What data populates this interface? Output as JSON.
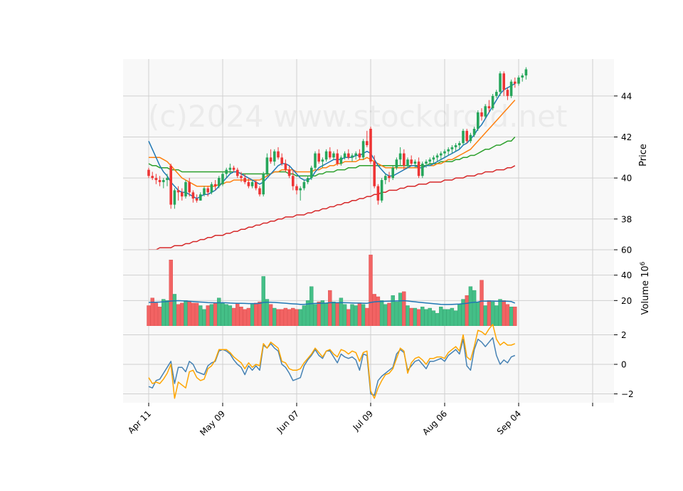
{
  "chart_data": {
    "type": "candlestick",
    "watermark": "(c)2024 www.stockdroid.net",
    "price_panel": {
      "ylabel": "Price",
      "yticks": [
        38,
        40,
        42,
        44
      ],
      "ylim": [
        36.5,
        45.8
      ]
    },
    "volume_panel": {
      "ylabel": "Volume  10",
      "ylabel_exp": "6",
      "yticks": [
        20,
        40,
        60
      ],
      "ylim": [
        0,
        60
      ]
    },
    "indicator_panel": {
      "yticks": [
        -2,
        0,
        2
      ],
      "ylim": [
        -2.6,
        2.6
      ]
    },
    "x_tick_labels": [
      "Apr 11",
      "May 09",
      "Jun 07",
      "Jul 09",
      "Aug 06",
      "Sep 04",
      ""
    ],
    "x_tick_index": [
      0,
      20,
      40,
      60,
      80,
      100,
      120
    ],
    "grid": true,
    "colors": {
      "up": "#26a65b",
      "down": "#ee3535",
      "up_volume": "#44bf87",
      "down_volume": "#f26363",
      "ma_short": "#1f77b4",
      "ma_mid": "#ff7f0e",
      "ma_long": "#2ca02c",
      "ma_longest": "#d62728",
      "volume_ma": "#1f77b4",
      "indicator_1": "#4682b4",
      "indicator_2": "#ffa500",
      "panel_bg": "#f8f8f8",
      "grid": "#d0d0d0"
    },
    "candles": [
      [
        40.4,
        40.5,
        40.0,
        40.1
      ],
      [
        40.1,
        40.3,
        39.9,
        40.0
      ],
      [
        40.0,
        40.2,
        39.7,
        39.9
      ],
      [
        39.9,
        40.1,
        39.6,
        39.8
      ],
      [
        39.8,
        40.0,
        39.5,
        39.9
      ],
      [
        39.9,
        40.2,
        39.6,
        40.0
      ],
      [
        40.6,
        40.7,
        38.5,
        38.7
      ],
      [
        38.7,
        39.5,
        38.5,
        39.4
      ],
      [
        39.4,
        39.6,
        38.9,
        39.3
      ],
      [
        39.3,
        39.5,
        38.9,
        39.1
      ],
      [
        39.1,
        39.9,
        39.0,
        39.8
      ],
      [
        39.8,
        40.0,
        39.1,
        39.3
      ],
      [
        39.3,
        39.4,
        38.8,
        39.0
      ],
      [
        39.0,
        39.2,
        38.8,
        38.9
      ],
      [
        38.9,
        39.3,
        38.9,
        39.2
      ],
      [
        39.2,
        39.6,
        39.1,
        39.5
      ],
      [
        39.5,
        39.6,
        39.1,
        39.3
      ],
      [
        39.3,
        39.8,
        39.2,
        39.7
      ],
      [
        39.7,
        39.9,
        39.4,
        39.6
      ],
      [
        39.6,
        40.1,
        39.5,
        40.0
      ],
      [
        39.7,
        40.3,
        39.6,
        40.2
      ],
      [
        40.2,
        40.5,
        40.0,
        40.4
      ],
      [
        40.4,
        40.7,
        40.2,
        40.5
      ],
      [
        40.5,
        40.6,
        40.3,
        40.4
      ],
      [
        40.4,
        40.5,
        40.0,
        40.1
      ],
      [
        40.1,
        40.3,
        39.8,
        40.0
      ],
      [
        40.0,
        40.2,
        39.7,
        39.8
      ],
      [
        39.8,
        40.0,
        39.5,
        39.6
      ],
      [
        39.6,
        39.9,
        39.5,
        39.8
      ],
      [
        39.8,
        39.9,
        39.4,
        39.5
      ],
      [
        39.5,
        39.6,
        39.1,
        39.2
      ],
      [
        39.2,
        40.3,
        39.1,
        40.2
      ],
      [
        40.2,
        41.2,
        40.1,
        41.0
      ],
      [
        41.0,
        41.4,
        40.7,
        40.8
      ],
      [
        40.8,
        41.4,
        40.6,
        41.3
      ],
      [
        41.3,
        41.5,
        40.9,
        41.0
      ],
      [
        41.0,
        41.2,
        40.6,
        40.7
      ],
      [
        40.7,
        40.9,
        40.3,
        40.4
      ],
      [
        40.4,
        40.6,
        40.0,
        40.1
      ],
      [
        40.1,
        40.4,
        39.4,
        39.6
      ],
      [
        39.6,
        39.7,
        39.2,
        39.4
      ],
      [
        39.4,
        39.6,
        38.9,
        39.5
      ],
      [
        39.5,
        39.9,
        39.4,
        39.8
      ],
      [
        39.8,
        40.1,
        39.7,
        40.0
      ],
      [
        40.0,
        40.6,
        39.9,
        40.5
      ],
      [
        40.5,
        41.3,
        40.4,
        41.2
      ],
      [
        41.2,
        41.4,
        40.7,
        40.8
      ],
      [
        40.8,
        41.0,
        40.5,
        40.9
      ],
      [
        40.9,
        41.4,
        40.8,
        41.3
      ],
      [
        41.3,
        41.5,
        40.9,
        41.0
      ],
      [
        41.0,
        41.3,
        40.9,
        41.2
      ],
      [
        41.2,
        41.4,
        40.6,
        40.7
      ],
      [
        40.7,
        41.1,
        40.6,
        41.0
      ],
      [
        41.0,
        41.3,
        40.9,
        41.2
      ],
      [
        41.2,
        41.4,
        40.9,
        41.0
      ],
      [
        41.0,
        41.2,
        40.8,
        41.1
      ],
      [
        41.1,
        41.3,
        40.9,
        41.2
      ],
      [
        41.2,
        41.4,
        40.9,
        41.0
      ],
      [
        41.0,
        41.9,
        40.9,
        41.8
      ],
      [
        41.8,
        42.3,
        41.5,
        41.6
      ],
      [
        42.4,
        42.5,
        40.7,
        40.8
      ],
      [
        40.8,
        41.1,
        39.5,
        39.6
      ],
      [
        39.6,
        39.7,
        38.7,
        38.9
      ],
      [
        38.9,
        40.0,
        38.8,
        39.9
      ],
      [
        39.9,
        40.2,
        39.7,
        40.1
      ],
      [
        40.1,
        40.3,
        39.8,
        40.0
      ],
      [
        40.0,
        40.6,
        39.9,
        40.5
      ],
      [
        40.5,
        41.0,
        40.4,
        40.9
      ],
      [
        40.9,
        41.5,
        40.6,
        41.2
      ],
      [
        41.2,
        41.4,
        40.4,
        40.6
      ],
      [
        40.6,
        41.0,
        40.5,
        40.9
      ],
      [
        40.9,
        41.1,
        40.6,
        40.7
      ],
      [
        40.7,
        40.9,
        40.5,
        40.8
      ],
      [
        40.8,
        41.0,
        40.0,
        40.1
      ],
      [
        40.1,
        40.8,
        40.0,
        40.7
      ],
      [
        40.7,
        40.9,
        40.5,
        40.8
      ],
      [
        40.8,
        41.0,
        40.6,
        40.9
      ],
      [
        40.9,
        41.1,
        40.7,
        41.0
      ],
      [
        41.0,
        41.2,
        40.8,
        41.1
      ],
      [
        41.1,
        41.3,
        40.9,
        41.2
      ],
      [
        41.2,
        41.4,
        41.0,
        41.3
      ],
      [
        41.3,
        41.5,
        41.1,
        41.4
      ],
      [
        41.4,
        41.6,
        41.2,
        41.5
      ],
      [
        41.5,
        41.7,
        41.3,
        41.6
      ],
      [
        41.6,
        41.8,
        41.4,
        41.7
      ],
      [
        41.7,
        42.4,
        41.6,
        42.3
      ],
      [
        42.3,
        42.4,
        41.7,
        41.8
      ],
      [
        41.8,
        42.2,
        41.7,
        42.1
      ],
      [
        42.1,
        42.5,
        42.0,
        42.4
      ],
      [
        42.4,
        43.3,
        42.3,
        43.2
      ],
      [
        43.2,
        43.4,
        42.8,
        43.0
      ],
      [
        43.0,
        43.6,
        42.9,
        43.5
      ],
      [
        43.5,
        43.8,
        43.2,
        43.4
      ],
      [
        43.4,
        44.1,
        43.3,
        44.0
      ],
      [
        44.0,
        44.3,
        43.9,
        44.2
      ],
      [
        44.2,
        45.2,
        44.0,
        45.1
      ],
      [
        45.1,
        45.2,
        44.0,
        44.3
      ],
      [
        44.3,
        44.4,
        43.8,
        44.0
      ],
      [
        44.0,
        44.8,
        43.9,
        44.7
      ],
      [
        44.7,
        44.9,
        44.4,
        44.6
      ],
      [
        44.6,
        45.0,
        44.5,
        44.9
      ],
      [
        44.9,
        45.1,
        44.7,
        45.0
      ],
      [
        45.0,
        45.4,
        44.8,
        45.3
      ]
    ],
    "volumes": [
      16,
      22,
      18,
      15,
      21,
      20,
      52,
      25,
      17,
      18,
      20,
      19,
      18,
      18,
      16,
      13,
      16,
      17,
      18,
      22,
      18,
      17,
      16,
      14,
      18,
      15,
      13,
      14,
      17,
      18,
      19,
      39,
      21,
      17,
      14,
      13,
      13,
      14,
      13,
      14,
      13,
      13,
      16,
      20,
      31,
      17,
      19,
      20,
      18,
      28,
      19,
      18,
      22,
      17,
      13,
      17,
      16,
      18,
      17,
      14,
      56,
      25,
      23,
      20,
      17,
      18,
      24,
      19,
      26,
      27,
      16,
      14,
      14,
      13,
      15,
      13,
      14,
      12,
      10,
      15,
      13,
      13,
      14,
      12,
      17,
      21,
      24,
      31,
      28,
      19,
      36,
      16,
      20,
      19,
      16,
      21,
      20,
      17,
      15,
      15
    ],
    "volume_ma": [
      18.5,
      18.6,
      18.7,
      18.8,
      19.0,
      19.2,
      19.6,
      19.8,
      19.9,
      19.8,
      19.6,
      19.4,
      19.2,
      19.0,
      18.8,
      18.6,
      18.4,
      18.3,
      18.2,
      18.2,
      18.3,
      18.2,
      18.0,
      17.9,
      17.8,
      17.8,
      17.7,
      17.6,
      17.6,
      17.6,
      17.8,
      18.5,
      18.6,
      18.6,
      18.5,
      18.3,
      18.1,
      17.9,
      17.6,
      17.4,
      17.2,
      17.0,
      17.0,
      17.2,
      17.6,
      17.7,
      17.8,
      17.9,
      18.0,
      18.3,
      18.3,
      18.3,
      18.4,
      18.3,
      18.2,
      18.1,
      18.0,
      18.0,
      17.9,
      17.8,
      18.5,
      18.9,
      19.2,
      19.3,
      19.4,
      19.5,
      19.6,
      19.7,
      19.8,
      19.9,
      19.6,
      19.3,
      19.0,
      18.7,
      18.4,
      18.1,
      17.8,
      17.5,
      17.2,
      17.0,
      16.9,
      16.9,
      17.0,
      17.1,
      17.2,
      17.5,
      17.8,
      18.3,
      18.7,
      18.8,
      19.6,
      19.5,
      19.6,
      19.6,
      19.4,
      19.5,
      19.5,
      19.4,
      19.2,
      18.0
    ],
    "ma_short": [
      41.8,
      41.4,
      41.0,
      40.6,
      40.3,
      40.1,
      39.8,
      39.6,
      39.4,
      39.3,
      39.3,
      39.2,
      39.1,
      39.0,
      39.1,
      39.2,
      39.2,
      39.3,
      39.4,
      39.6,
      39.8,
      40.0,
      40.2,
      40.3,
      40.3,
      40.2,
      40.1,
      40.0,
      39.9,
      39.8,
      39.7,
      39.8,
      40.0,
      40.2,
      40.4,
      40.6,
      40.7,
      40.7,
      40.6,
      40.4,
      40.2,
      40.0,
      39.9,
      39.9,
      40.0,
      40.3,
      40.5,
      40.6,
      40.7,
      40.8,
      40.9,
      40.9,
      40.9,
      41.0,
      41.0,
      41.0,
      41.1,
      41.1,
      41.2,
      41.3,
      41.2,
      40.9,
      40.6,
      40.4,
      40.2,
      40.1,
      40.1,
      40.2,
      40.3,
      40.4,
      40.5,
      40.6,
      40.6,
      40.5,
      40.5,
      40.6,
      40.6,
      40.7,
      40.8,
      40.9,
      41.0,
      41.1,
      41.2,
      41.3,
      41.4,
      41.6,
      41.7,
      41.9,
      42.1,
      42.4,
      42.6,
      42.9,
      43.2,
      43.5,
      43.8,
      44.1,
      44.3,
      44.4,
      44.5,
      44.6
    ],
    "ma_mid": [
      41.0,
      41.0,
      41.0,
      41.0,
      40.9,
      40.8,
      40.6,
      40.4,
      40.2,
      40.0,
      39.9,
      39.8,
      39.7,
      39.6,
      39.6,
      39.6,
      39.6,
      39.6,
      39.6,
      39.7,
      39.7,
      39.8,
      39.8,
      39.9,
      39.9,
      39.9,
      39.9,
      39.9,
      39.9,
      39.9,
      39.9,
      40.0,
      40.1,
      40.2,
      40.3,
      40.3,
      40.4,
      40.4,
      40.4,
      40.4,
      40.3,
      40.3,
      40.3,
      40.3,
      40.3,
      40.4,
      40.4,
      40.5,
      40.5,
      40.6,
      40.6,
      40.7,
      40.7,
      40.8,
      40.8,
      40.8,
      40.8,
      40.9,
      40.9,
      41.0,
      40.9,
      40.8,
      40.7,
      40.6,
      40.5,
      40.5,
      40.5,
      40.5,
      40.5,
      40.5,
      40.5,
      40.5,
      40.5,
      40.5,
      40.5,
      40.6,
      40.6,
      40.6,
      40.7,
      40.7,
      40.8,
      40.9,
      40.9,
      41.0,
      41.1,
      41.2,
      41.3,
      41.4,
      41.6,
      41.8,
      42.0,
      42.2,
      42.4,
      42.6,
      42.8,
      43.0,
      43.2,
      43.4,
      43.6,
      43.8
    ],
    "ma_long": [
      40.7,
      40.6,
      40.6,
      40.5,
      40.5,
      40.5,
      40.4,
      40.4,
      40.4,
      40.3,
      40.3,
      40.3,
      40.3,
      40.3,
      40.3,
      40.3,
      40.3,
      40.3,
      40.3,
      40.3,
      40.3,
      40.3,
      40.3,
      40.3,
      40.3,
      40.2,
      40.2,
      40.2,
      40.2,
      40.2,
      40.2,
      40.2,
      40.2,
      40.2,
      40.3,
      40.3,
      40.3,
      40.3,
      40.2,
      40.2,
      40.1,
      40.1,
      40.1,
      40.1,
      40.1,
      40.1,
      40.2,
      40.2,
      40.3,
      40.3,
      40.3,
      40.4,
      40.4,
      40.4,
      40.5,
      40.5,
      40.5,
      40.6,
      40.6,
      40.6,
      40.6,
      40.6,
      40.6,
      40.6,
      40.6,
      40.6,
      40.6,
      40.6,
      40.6,
      40.6,
      40.6,
      40.6,
      40.6,
      40.6,
      40.6,
      40.6,
      40.7,
      40.7,
      40.7,
      40.8,
      40.8,
      40.8,
      40.8,
      40.9,
      40.9,
      41.0,
      41.0,
      41.1,
      41.1,
      41.2,
      41.3,
      41.4,
      41.4,
      41.5,
      41.6,
      41.6,
      41.7,
      41.8,
      41.8,
      42.0
    ],
    "ma_longest": [
      36.5,
      36.5,
      36.5,
      36.6,
      36.6,
      36.6,
      36.6,
      36.7,
      36.7,
      36.7,
      36.8,
      36.8,
      36.9,
      36.9,
      37.0,
      37.0,
      37.1,
      37.1,
      37.2,
      37.2,
      37.2,
      37.3,
      37.3,
      37.4,
      37.4,
      37.5,
      37.5,
      37.6,
      37.6,
      37.7,
      37.7,
      37.8,
      37.8,
      37.9,
      37.9,
      38.0,
      38.0,
      38.1,
      38.1,
      38.1,
      38.2,
      38.2,
      38.2,
      38.3,
      38.3,
      38.4,
      38.4,
      38.5,
      38.5,
      38.6,
      38.6,
      38.7,
      38.7,
      38.8,
      38.8,
      38.9,
      38.9,
      39.0,
      39.0,
      39.1,
      39.1,
      39.2,
      39.2,
      39.3,
      39.3,
      39.4,
      39.4,
      39.4,
      39.5,
      39.5,
      39.6,
      39.6,
      39.6,
      39.7,
      39.7,
      39.7,
      39.8,
      39.8,
      39.8,
      39.8,
      39.9,
      39.9,
      39.9,
      40.0,
      40.0,
      40.0,
      40.1,
      40.1,
      40.1,
      40.2,
      40.2,
      40.3,
      40.3,
      40.3,
      40.4,
      40.4,
      40.4,
      40.5,
      40.5,
      40.6
    ],
    "indicator_1": [
      -1.5,
      -1.6,
      -1.1,
      -1.0,
      -0.6,
      -0.2,
      0.2,
      -1.3,
      -0.2,
      -0.2,
      -0.5,
      0.2,
      0.0,
      -0.5,
      -0.6,
      -0.7,
      -0.1,
      0.1,
      0.2,
      0.9,
      1.0,
      0.9,
      0.7,
      0.3,
      0.0,
      -0.2,
      -0.7,
      -0.1,
      -0.4,
      -0.1,
      -0.4,
      1.3,
      1.1,
      1.4,
      1.1,
      0.9,
      0.0,
      -0.2,
      -0.6,
      -1.1,
      -1.0,
      -0.9,
      -0.1,
      0.3,
      0.6,
      1.0,
      0.6,
      0.4,
      0.9,
      0.9,
      0.5,
      0.1,
      0.7,
      0.5,
      0.4,
      0.5,
      0.3,
      -0.4,
      0.7,
      0.6,
      -2.0,
      -2.1,
      -1.1,
      -0.8,
      -0.6,
      -0.4,
      -0.2,
      0.7,
      1.0,
      0.8,
      -0.4,
      -0.1,
      0.2,
      0.3,
      0.0,
      -0.3,
      0.2,
      0.2,
      0.3,
      0.4,
      0.2,
      0.6,
      0.8,
      1.0,
      0.7,
      1.7,
      -0.1,
      -0.4,
      1.0,
      1.7,
      1.5,
      1.2,
      1.5,
      1.8,
      0.6,
      0.0,
      0.3,
      0.1,
      0.5,
      0.6
    ],
    "indicator_2": [
      -0.9,
      -1.3,
      -1.2,
      -1.3,
      -1.0,
      -0.6,
      0.0,
      -2.3,
      -1.2,
      -1.4,
      -1.6,
      -0.5,
      -0.4,
      -0.9,
      -1.1,
      -1.0,
      -0.3,
      -0.1,
      0.3,
      1.0,
      1.0,
      1.0,
      0.8,
      0.5,
      0.3,
      0.1,
      -0.3,
      0.1,
      -0.2,
      0.0,
      -0.1,
      1.4,
      1.1,
      1.5,
      1.3,
      1.1,
      0.2,
      0.1,
      -0.3,
      -0.4,
      -0.4,
      -0.3,
      0.1,
      0.4,
      0.7,
      1.1,
      0.8,
      0.5,
      0.9,
      1.0,
      0.7,
      0.5,
      1.0,
      0.9,
      0.7,
      0.9,
      0.8,
      0.2,
      0.8,
      0.9,
      -1.8,
      -2.3,
      -1.6,
      -1.1,
      -0.7,
      -0.6,
      -0.3,
      0.4,
      1.1,
      0.9,
      -0.6,
      0.1,
      0.4,
      0.5,
      0.3,
      0.0,
      0.4,
      0.4,
      0.5,
      0.5,
      0.4,
      0.8,
      1.0,
      1.2,
      0.9,
      2.0,
      0.5,
      0.3,
      1.2,
      2.3,
      2.2,
      2.0,
      2.4,
      2.7,
      1.7,
      1.3,
      1.5,
      1.3,
      1.3,
      1.4
    ]
  }
}
